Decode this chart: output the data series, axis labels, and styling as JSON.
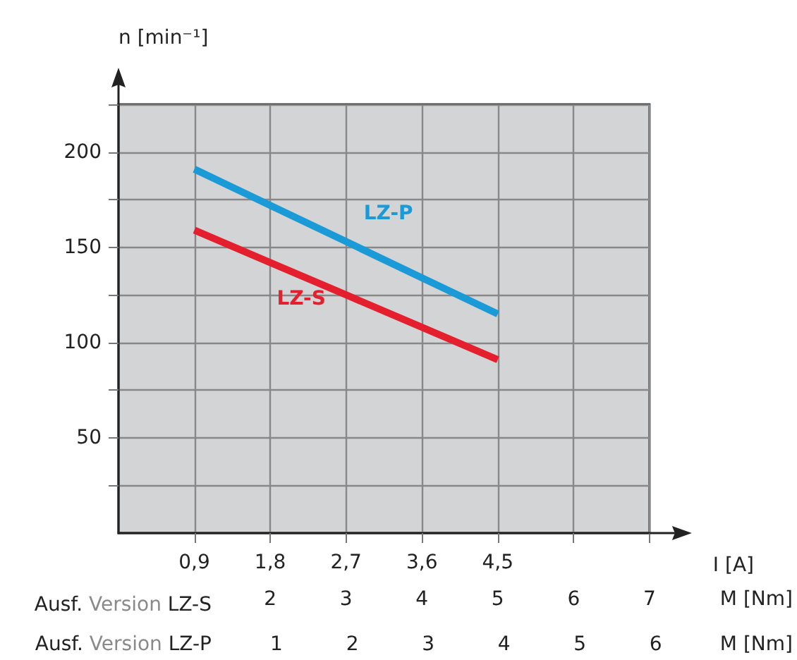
{
  "chart_data": {
    "type": "line",
    "xlabel": "I [A]",
    "ylabel": "n [min⁻¹]",
    "x2label": "M [Nm]",
    "xlim": [
      0,
      6.3
    ],
    "xticks": [
      {
        "value": 0.9,
        "label": "0,9"
      },
      {
        "value": 1.8,
        "label": "1,8"
      },
      {
        "value": 2.7,
        "label": "2,7"
      },
      {
        "value": 3.6,
        "label": "3,6"
      },
      {
        "value": 4.5,
        "label": "4,5"
      },
      {
        "value": 5.4,
        "label": null
      },
      {
        "value": 6.3,
        "label": null
      }
    ],
    "x2lim": [
      0,
      7
    ],
    "x2ticks": [
      2,
      3,
      4,
      5,
      6,
      7
    ],
    "ylim": [
      0,
      225
    ],
    "yticks": [
      {
        "value": 25,
        "label": null
      },
      50,
      {
        "value": 75,
        "label": null
      },
      100,
      {
        "value": 125,
        "label": null
      },
      150,
      {
        "value": 175,
        "label": null
      },
      200,
      {
        "value": 225,
        "label": null
      }
    ],
    "x": [
      0.9,
      1.8,
      2.7,
      3.6,
      4.5
    ],
    "series": [
      {
        "name": "LZ-P",
        "color": "#1a9ad6",
        "values": [
          191,
          172,
          153,
          134,
          115
        ]
      },
      {
        "name": "LZ-S",
        "color": "#e5202e",
        "values": [
          159,
          142,
          125,
          108,
          91
        ]
      }
    ],
    "annotations": [
      "Ausf. Version LZ-S",
      "Ausf. Version LZ-P",
      "1",
      "2",
      "3",
      "4",
      "5",
      "6",
      "M [Nm]"
    ],
    "grid": true,
    "line_style": "solid"
  }
}
